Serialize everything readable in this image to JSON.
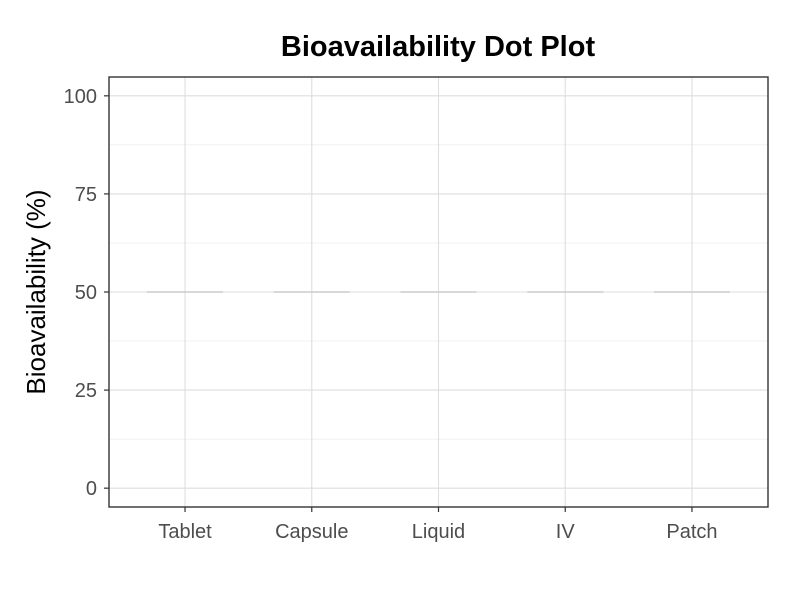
{
  "chart_data": {
    "type": "scatter",
    "title": "Bioavailability Dot Plot",
    "xlabel": "",
    "ylabel": "Bioavailability (%)",
    "categories": [
      "Tablet",
      "Capsule",
      "Liquid",
      "IV",
      "Patch"
    ],
    "reference_line": {
      "value": 50,
      "color": "#cccccc"
    },
    "ylim": [
      -4.8,
      104.8
    ],
    "yticks": [
      0,
      25,
      50,
      75,
      100
    ],
    "y_minor_ticks": [
      12.5,
      37.5,
      62.5,
      87.5
    ],
    "grid": true,
    "legend": "none",
    "colors": {
      "panel_border": "#333333",
      "grid_major": "#dedede",
      "grid_minor": "#f0f0f0",
      "tick": "#333333"
    }
  }
}
